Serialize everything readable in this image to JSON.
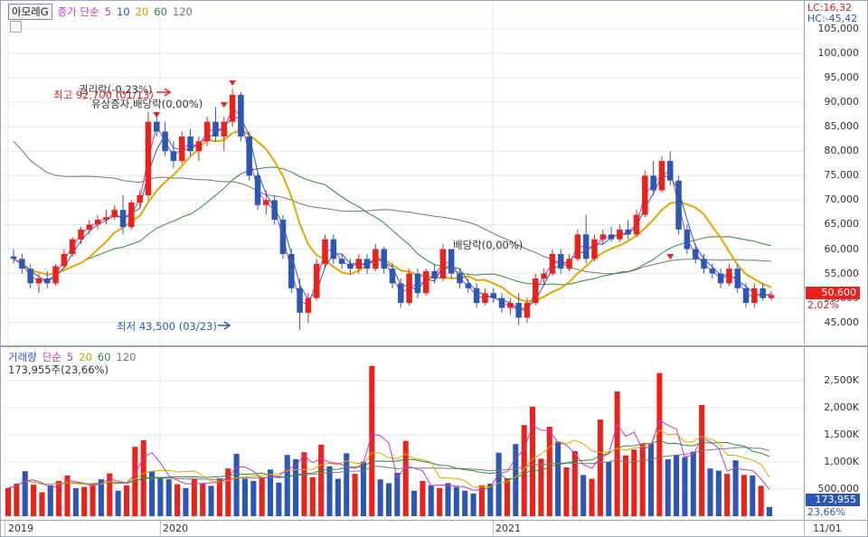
{
  "header": {
    "stock_name": "아모레G",
    "price_indicator": "종가 단순",
    "ma_periods": [
      "5",
      "10",
      "20",
      "60",
      "120"
    ],
    "lc": "LC:16,32",
    "hc": "HC:-45,42"
  },
  "volume_header": {
    "indicator": "거래량",
    "type": "단순",
    "ma_periods": [
      "5",
      "20",
      "60",
      "120"
    ],
    "summary": "173,955주(23,66%)"
  },
  "price_axis": {
    "ticks": [
      "105,000",
      "100,000",
      "95,000",
      "90,000",
      "85,000",
      "80,000",
      "75,000",
      "70,000",
      "65,000",
      "60,000",
      "55,000",
      "50,000",
      "45,000"
    ],
    "current_price": "50,600",
    "current_change": "2,02%"
  },
  "volume_axis": {
    "ticks": [
      "2,500K",
      "2,000K",
      "1,500K",
      "1,000K",
      "500,000"
    ],
    "current_volume": "173,955",
    "current_pct": "23,66%"
  },
  "x_axis": {
    "labels": [
      "2019",
      "2020",
      "2021",
      "11/01"
    ]
  },
  "annotations": {
    "rights_rate": "권리락(-0,23%)",
    "high": "최고 92,700 (01/13)",
    "rights_issue": "유상증자,배당락(0,00%)",
    "dividend": "배당락(0,00%)",
    "low": "최저 43,500 (03/23)"
  },
  "colors": {
    "up": "#e8231c",
    "down": "#2d57b5",
    "ma5": "#c03ac0",
    "ma10": "#2d57b5",
    "ma20": "#e0a800",
    "ma60": "#2f8a3a",
    "ma120": "#777777"
  },
  "chart_data": [
    {
      "type": "candlestick",
      "title": "",
      "ylim": [
        42000,
        107000
      ],
      "candles": [
        [
          58500,
          60000,
          57000,
          58000
        ],
        [
          58000,
          59000,
          55000,
          56000
        ],
        [
          56000,
          57000,
          52000,
          53000
        ],
        [
          53000,
          55000,
          51000,
          54000
        ],
        [
          54000,
          55500,
          52000,
          53000
        ],
        [
          53000,
          57000,
          52500,
          56500
        ],
        [
          56500,
          60000,
          56000,
          59000
        ],
        [
          59000,
          62500,
          58500,
          62000
        ],
        [
          62000,
          64500,
          61000,
          64000
        ],
        [
          64000,
          66000,
          63000,
          65000
        ],
        [
          65000,
          67000,
          64000,
          66000
        ],
        [
          66000,
          68000,
          65000,
          66500
        ],
        [
          66500,
          69000,
          66000,
          68000
        ],
        [
          68000,
          71000,
          63000,
          64500
        ],
        [
          64500,
          70000,
          64000,
          69500
        ],
        [
          69500,
          72000,
          68500,
          71000
        ],
        [
          71000,
          88000,
          70000,
          86000
        ],
        [
          86000,
          88000,
          83000,
          84000
        ],
        [
          84000,
          86000,
          79000,
          80000
        ],
        [
          80000,
          82000,
          76500,
          78000
        ],
        [
          78000,
          84000,
          77500,
          83000
        ],
        [
          83000,
          84500,
          79000,
          80000
        ],
        [
          80000,
          83000,
          78000,
          82000
        ],
        [
          82000,
          87000,
          81000,
          86000
        ],
        [
          86000,
          89000,
          82000,
          83000
        ],
        [
          83000,
          87000,
          80000,
          86000
        ],
        [
          86000,
          92700,
          85000,
          91500
        ],
        [
          91500,
          92000,
          82000,
          83000
        ],
        [
          83000,
          84000,
          74000,
          75000
        ],
        [
          75000,
          76000,
          68000,
          69000
        ],
        [
          69000,
          72000,
          67000,
          70000
        ],
        [
          70000,
          71000,
          65000,
          66000
        ],
        [
          66000,
          67000,
          58000,
          59000
        ],
        [
          59000,
          60000,
          51000,
          52000
        ],
        [
          52000,
          54000,
          43500,
          47000
        ],
        [
          47000,
          51000,
          45000,
          50000
        ],
        [
          50000,
          58000,
          49500,
          57000
        ],
        [
          57000,
          63000,
          56000,
          62000
        ],
        [
          62000,
          63000,
          57000,
          58000
        ],
        [
          58000,
          59000,
          56000,
          57000
        ],
        [
          57000,
          58000,
          55000,
          56000
        ],
        [
          56000,
          59000,
          55000,
          58000
        ],
        [
          58000,
          59000,
          55000,
          56000
        ],
        [
          56000,
          61000,
          55500,
          60000
        ],
        [
          60000,
          60500,
          55000,
          56000
        ],
        [
          56000,
          57000,
          52000,
          53000
        ],
        [
          53000,
          54000,
          48000,
          49000
        ],
        [
          49000,
          56000,
          48500,
          55000
        ],
        [
          55000,
          56000,
          50000,
          51000
        ],
        [
          51000,
          56000,
          50500,
          55500
        ],
        [
          55500,
          57000,
          53000,
          54000
        ],
        [
          54000,
          61000,
          53500,
          60000
        ],
        [
          60000,
          60000,
          54000,
          55000
        ],
        [
          55000,
          56000,
          52000,
          53000
        ],
        [
          53000,
          54000,
          51000,
          52000
        ],
        [
          52000,
          53000,
          48000,
          49000
        ],
        [
          49000,
          52000,
          48500,
          51000
        ],
        [
          51000,
          52000,
          49000,
          50000
        ],
        [
          50000,
          51000,
          47000,
          48000
        ],
        [
          48000,
          50000,
          46500,
          49000
        ],
        [
          49000,
          51000,
          44500,
          46000
        ],
        [
          46000,
          50000,
          45000,
          49000
        ],
        [
          49000,
          55000,
          48500,
          54000
        ],
        [
          54000,
          56000,
          52500,
          55000
        ],
        [
          55000,
          60000,
          54500,
          59000
        ],
        [
          59000,
          60000,
          55000,
          56000
        ],
        [
          56000,
          59000,
          55500,
          58000
        ],
        [
          58000,
          64000,
          57500,
          63000
        ],
        [
          63000,
          67000,
          57000,
          58000
        ],
        [
          58000,
          63000,
          57500,
          62000
        ],
        [
          62000,
          64000,
          61000,
          63000
        ],
        [
          63000,
          64500,
          61500,
          62000
        ],
        [
          62000,
          65000,
          61500,
          64000
        ],
        [
          64000,
          66000,
          62000,
          63000
        ],
        [
          63000,
          68000,
          62500,
          67000
        ],
        [
          67000,
          76000,
          66500,
          75000
        ],
        [
          75000,
          78000,
          71000,
          72000
        ],
        [
          72000,
          79000,
          71500,
          78000
        ],
        [
          78000,
          80000,
          73000,
          74000
        ],
        [
          74000,
          75000,
          63000,
          64000
        ],
        [
          64000,
          65000,
          59000,
          60000
        ],
        [
          60000,
          61000,
          57000,
          58000
        ],
        [
          58000,
          59000,
          55000,
          56000
        ],
        [
          56000,
          57000,
          54000,
          55000
        ],
        [
          55000,
          56000,
          52000,
          53000
        ],
        [
          53000,
          57000,
          52500,
          56000
        ],
        [
          56000,
          57000,
          51000,
          52000
        ],
        [
          52000,
          53000,
          48000,
          49000
        ],
        [
          49000,
          53000,
          48000,
          52000
        ],
        [
          52000,
          53000,
          49500,
          50000
        ],
        [
          50000,
          51500,
          49500,
          50600
        ]
      ]
    },
    {
      "type": "bar",
      "title": "",
      "ylim": [
        0,
        3000000
      ],
      "values": [
        520000,
        600000,
        830000,
        580000,
        440000,
        570000,
        650000,
        750000,
        520000,
        540000,
        600000,
        680000,
        790000,
        470000,
        570000,
        1280000,
        1400000,
        830000,
        720000,
        680000,
        590000,
        520000,
        690000,
        600000,
        560000,
        700000,
        880000,
        1150000,
        690000,
        650000,
        720000,
        860000,
        620000,
        1130000,
        1050000,
        1180000,
        720000,
        1320000,
        920000,
        690000,
        1160000,
        780000,
        1000000,
        2770000,
        680000,
        610000,
        800000,
        1390000,
        470000,
        650000,
        570000,
        520000,
        610000,
        540000,
        470000,
        420000,
        570000,
        600000,
        1170000,
        700000,
        1330000,
        1680000,
        2020000,
        1060000,
        1650000,
        1380000,
        900000,
        1200000,
        760000,
        690000,
        1780000,
        1000000,
        2300000,
        1120000,
        1230000,
        1330000,
        1340000,
        2640000,
        1050000,
        1130000,
        1090000,
        1190000,
        2050000,
        880000,
        840000,
        780000,
        1030000,
        760000,
        750000,
        560000,
        170000
      ],
      "colors_up": [
        true,
        true,
        false,
        true,
        true,
        false,
        true,
        true,
        false,
        true,
        true,
        false,
        true,
        false,
        true,
        true,
        true,
        false,
        false,
        false,
        true,
        false,
        true,
        true,
        false,
        true,
        true,
        false,
        false,
        false,
        true,
        false,
        false,
        false,
        false,
        true,
        true,
        true,
        false,
        false,
        false,
        true,
        false,
        true,
        false,
        false,
        false,
        true,
        false,
        true,
        false,
        true,
        false,
        false,
        false,
        false,
        true,
        false,
        false,
        true,
        false,
        true,
        true,
        true,
        true,
        false,
        true,
        true,
        false,
        true,
        true,
        false,
        true,
        true,
        true,
        true,
        false,
        true,
        false,
        false,
        false,
        false,
        true,
        false,
        false,
        true,
        false,
        true,
        false,
        true,
        false
      ]
    }
  ]
}
